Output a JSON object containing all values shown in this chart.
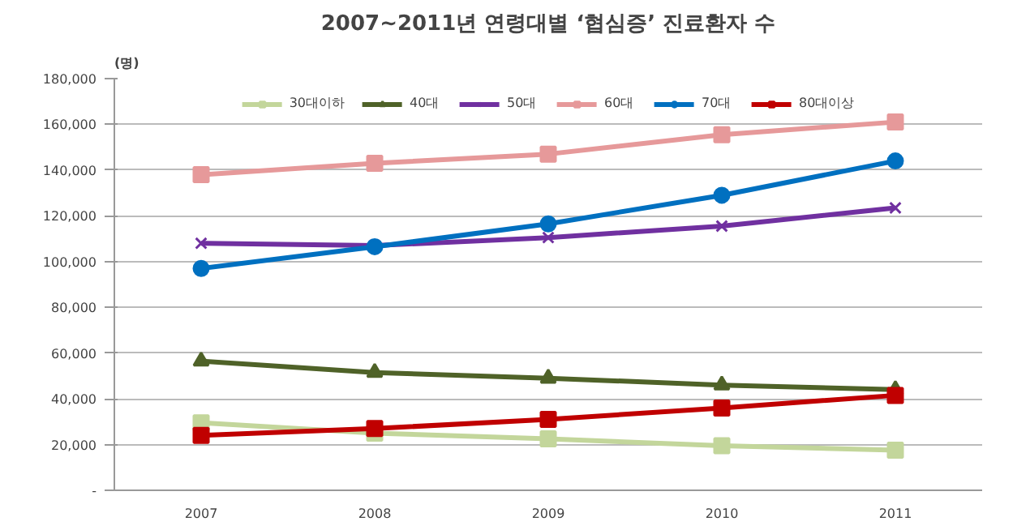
{
  "chart_data": {
    "type": "line",
    "title": "2007~2011년 연령대별 ‘협심증’ 진료환자 수",
    "ylabel": "(명)",
    "categories": [
      "2007",
      "2008",
      "2009",
      "2010",
      "2011"
    ],
    "ylim": [
      0,
      180000
    ],
    "yticks": [
      {
        "value": 0,
        "label": "-"
      },
      {
        "value": 20000,
        "label": "20,000"
      },
      {
        "value": 40000,
        "label": "40,000"
      },
      {
        "value": 60000,
        "label": "60,000"
      },
      {
        "value": 80000,
        "label": "80,000"
      },
      {
        "value": 100000,
        "label": "100,000"
      },
      {
        "value": 120000,
        "label": "120,000"
      },
      {
        "value": 140000,
        "label": "140,000"
      },
      {
        "value": 160000,
        "label": "160,000"
      },
      {
        "value": 180000,
        "label": "180,000"
      }
    ],
    "grid": "y",
    "legend": "top",
    "line_style": "solid",
    "series": [
      {
        "name": "30대이하",
        "color": "#c3d69b",
        "marker": "square",
        "values": [
          29500,
          25000,
          22500,
          19500,
          17500
        ]
      },
      {
        "name": "40대",
        "color": "#4f6228",
        "marker": "triangle",
        "values": [
          56500,
          51500,
          49000,
          46000,
          44000
        ]
      },
      {
        "name": "50대",
        "color": "#7030a0",
        "marker": "cross",
        "values": [
          108000,
          107000,
          110500,
          115500,
          123500
        ]
      },
      {
        "name": "60대",
        "color": "#e6999a",
        "marker": "square",
        "values": [
          138000,
          143000,
          147000,
          155500,
          161000
        ]
      },
      {
        "name": "70대",
        "color": "#0070c0",
        "marker": "circle",
        "values": [
          97000,
          106500,
          116500,
          129000,
          144000
        ]
      },
      {
        "name": "80대이상",
        "color": "#c00000",
        "marker": "square",
        "values": [
          24000,
          27000,
          31000,
          36000,
          41500
        ]
      }
    ]
  }
}
